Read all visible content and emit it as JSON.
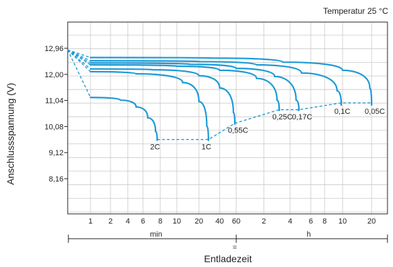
{
  "chart_data": {
    "type": "line",
    "title": "",
    "note": "Temperatur 25 °C",
    "ylabel": "Anschlussspannung (V)",
    "xlabel": "Entladezeit",
    "ylim": [
      7.3,
      13.3
    ],
    "y_ticks": [
      "12,96",
      "12,00",
      "11,04",
      "10,08",
      "9,12",
      "8,16"
    ],
    "y_tick_values": [
      12.96,
      12.0,
      11.04,
      10.08,
      9.12,
      8.16
    ],
    "x_ticks": [
      "1",
      "2",
      "4",
      "6",
      "8",
      "10",
      "20",
      "40",
      "60",
      "2",
      "4",
      "6",
      "8",
      "10",
      "20"
    ],
    "x_tick_minutes": [
      1,
      2,
      4,
      6,
      8,
      10,
      20,
      40,
      60,
      120,
      240,
      360,
      480,
      600,
      1200
    ],
    "x_segments": [
      "min",
      "h"
    ],
    "x_segment_mark": "=",
    "grid": true,
    "series": [
      {
        "name": "2C",
        "x": [
          1,
          3,
          5,
          6.5,
          7.4,
          7.6
        ],
        "y": [
          11.15,
          11.05,
          10.8,
          10.4,
          9.9,
          9.6
        ]
      },
      {
        "name": "1C",
        "x": [
          1,
          5,
          12,
          20,
          26,
          27.5
        ],
        "y": [
          12.1,
          12.02,
          11.7,
          11.0,
          10.1,
          9.6
        ]
      },
      {
        "name": "0,55C",
        "x": [
          1,
          7,
          20,
          40,
          56,
          58
        ],
        "y": [
          12.2,
          12.17,
          11.95,
          11.5,
          10.6,
          10.2
        ]
      },
      {
        "name": "0,25C",
        "x": [
          1,
          10,
          40,
          100,
          170,
          180
        ],
        "y": [
          12.35,
          12.3,
          12.15,
          11.85,
          11.05,
          10.7
        ]
      },
      {
        "name": "0,17C",
        "x": [
          1,
          15,
          60,
          160,
          270,
          285
        ],
        "y": [
          12.42,
          12.37,
          12.22,
          11.92,
          11.05,
          10.7
        ]
      },
      {
        "name": "0,1C",
        "x": [
          1,
          20,
          100,
          300,
          560,
          590
        ],
        "y": [
          12.5,
          12.47,
          12.35,
          12.05,
          11.4,
          10.9
        ]
      },
      {
        "name": "0,05C",
        "x": [
          1,
          30,
          200,
          600,
          1150,
          1200
        ],
        "y": [
          12.62,
          12.6,
          12.45,
          12.15,
          11.5,
          10.9
        ]
      }
    ],
    "cutoff_line": {
      "x": [
        7.6,
        27.5,
        58,
        180,
        285,
        590,
        1200
      ],
      "y": [
        9.6,
        9.6,
        10.2,
        10.7,
        10.7,
        10.95,
        10.95
      ]
    }
  }
}
